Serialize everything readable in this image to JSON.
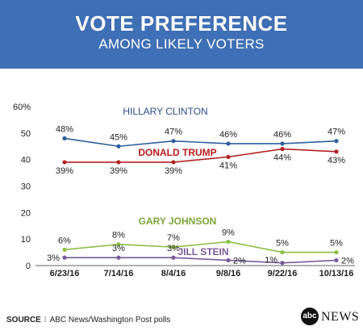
{
  "header": {
    "title": "VOTE PREFERENCE",
    "subtitle": "AMONG LIKELY VOTERS"
  },
  "footer": {
    "source_label": "SOURCE",
    "source_sep": "I",
    "source_text": "ABC News/Washington Post polls"
  },
  "brand": {
    "logo_text": "abc",
    "name": "NEWS"
  },
  "colors": {
    "header_bg": "#3f6fb4",
    "clinton": "#2e5f9e",
    "trump": "#b22222",
    "johnson": "#8cbf45",
    "stein": "#7a5a9a",
    "clinton_label": "#2c4f8a",
    "trump_label": "#b81c1c",
    "johnson_label": "#7ba63a",
    "stein_label": "#7a5a9a"
  },
  "chart_data": {
    "type": "line",
    "title": "VOTE PREFERENCE",
    "subtitle": "AMONG LIKELY VOTERS",
    "categories": [
      "6/23/16",
      "7/14/16",
      "8/4/16",
      "9/8/16",
      "9/22/16",
      "10/13/16"
    ],
    "yticks": [
      "0",
      "10",
      "20",
      "30",
      "40",
      "50",
      "60%"
    ],
    "ylim": [
      0,
      60
    ],
    "grid": false,
    "series": [
      {
        "name": "HILLARY CLINTON",
        "color_key": "clinton",
        "values": [
          48,
          45,
          47,
          46,
          46,
          47
        ],
        "labels": [
          "48%",
          "45%",
          "47%",
          "46%",
          "46%",
          "47%"
        ],
        "label_pos": "above"
      },
      {
        "name": "DONALD TRUMP",
        "color_key": "trump",
        "values": [
          39,
          39,
          39,
          41,
          44,
          43
        ],
        "labels": [
          "39%",
          "39%",
          "39%",
          "41%",
          "44%",
          "43%"
        ],
        "label_pos": "below"
      },
      {
        "name": "GARY JOHNSON",
        "color_key": "johnson",
        "values": [
          6,
          8,
          7,
          9,
          5,
          5
        ],
        "labels": [
          "6%",
          "8%",
          "7%",
          "9%",
          "5%",
          "5%"
        ],
        "label_pos": "above"
      },
      {
        "name": "JILL STEIN",
        "color_key": "stein",
        "values": [
          3,
          3,
          3,
          2,
          1,
          2
        ],
        "labels": [
          "3%",
          "3%",
          "3%",
          "2%",
          "1%",
          "2%"
        ],
        "label_pos": "stein"
      }
    ]
  }
}
